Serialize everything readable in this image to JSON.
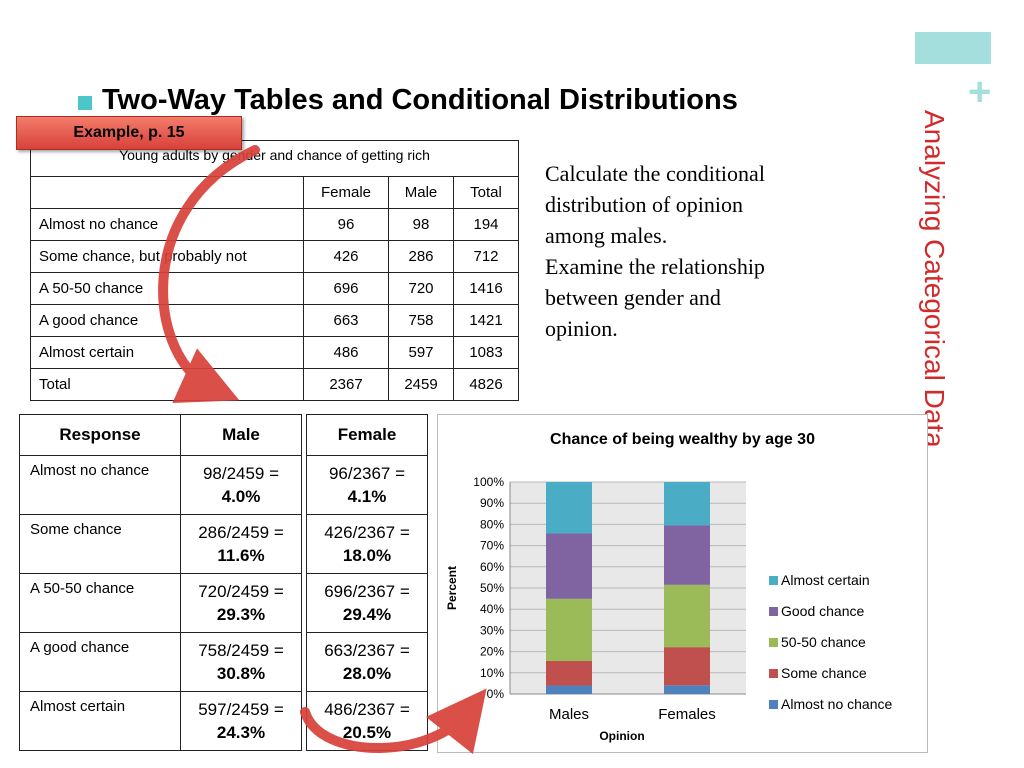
{
  "slide": {
    "plus_symbol": "+",
    "vertical_title": "Analyzing Categorical Data",
    "title": "Two-Way Tables and Conditional Distributions",
    "badge": "Example, p. 15",
    "question_lines": [
      "Calculate the conditional",
      "distribution of opinion",
      "among males.",
      "Examine the relationship",
      "between gender and",
      "opinion."
    ]
  },
  "two_way_table": {
    "caption": "Young adults by gender and chance of getting rich",
    "headers": [
      "",
      "Female",
      "Male",
      "Total"
    ],
    "rows": [
      [
        "Almost no chance",
        "96",
        "98",
        "194"
      ],
      [
        "Some chance, but probably not",
        "426",
        "286",
        "712"
      ],
      [
        "A 50-50 chance",
        "696",
        "720",
        "1416"
      ],
      [
        "A good chance",
        "663",
        "758",
        "1421"
      ],
      [
        "Almost certain",
        "486",
        "597",
        "1083"
      ],
      [
        "Total",
        "2367",
        "2459",
        "4826"
      ]
    ]
  },
  "conditional_table": {
    "headers": [
      "Response",
      "Male",
      "Female"
    ],
    "rows": [
      {
        "response": "Almost no chance",
        "male_frac": "98/2459 =",
        "male_pct": "4.0%",
        "female_frac": "96/2367 =",
        "female_pct": "4.1%"
      },
      {
        "response": "Some chance",
        "male_frac": "286/2459 =",
        "male_pct": "11.6%",
        "female_frac": "426/2367 =",
        "female_pct": "18.0%"
      },
      {
        "response": "A 50-50 chance",
        "male_frac": "720/2459 =",
        "male_pct": "29.3%",
        "female_frac": "696/2367 =",
        "female_pct": "29.4%"
      },
      {
        "response": "A good chance",
        "male_frac": "758/2459 =",
        "male_pct": "30.8%",
        "female_frac": "663/2367 =",
        "female_pct": "28.0%"
      },
      {
        "response": "Almost certain",
        "male_frac": "597/2459 =",
        "male_pct": "24.3%",
        "female_frac": "486/2367 =",
        "female_pct": "20.5%"
      }
    ]
  },
  "colors": {
    "accent_teal": "#a4dedd",
    "bullet": "#4cc6c8",
    "vertical_title": "#d22a2a",
    "arrow": "#d8413a"
  },
  "chart_data": {
    "type": "bar",
    "stacked": true,
    "title": "Chance of being wealthy by age 30",
    "xlabel": "Opinion",
    "ylabel": "Percent",
    "categories": [
      "Males",
      "Females"
    ],
    "ylim": [
      0,
      100
    ],
    "yticks": [
      "0%",
      "10%",
      "20%",
      "30%",
      "40%",
      "50%",
      "60%",
      "70%",
      "80%",
      "90%",
      "100%"
    ],
    "legend_position": "right",
    "series": [
      {
        "name": "Almost no chance",
        "values": [
          4.0,
          4.1
        ],
        "color": "#4f81bd"
      },
      {
        "name": "Some chance",
        "values": [
          11.6,
          18.0
        ],
        "color": "#c0504d"
      },
      {
        "name": "50-50 chance",
        "values": [
          29.3,
          29.4
        ],
        "color": "#9bbb59"
      },
      {
        "name": "Good chance",
        "values": [
          30.8,
          28.0
        ],
        "color": "#8064a2"
      },
      {
        "name": "Almost certain",
        "values": [
          24.3,
          20.5
        ],
        "color": "#4bacc6"
      }
    ]
  }
}
